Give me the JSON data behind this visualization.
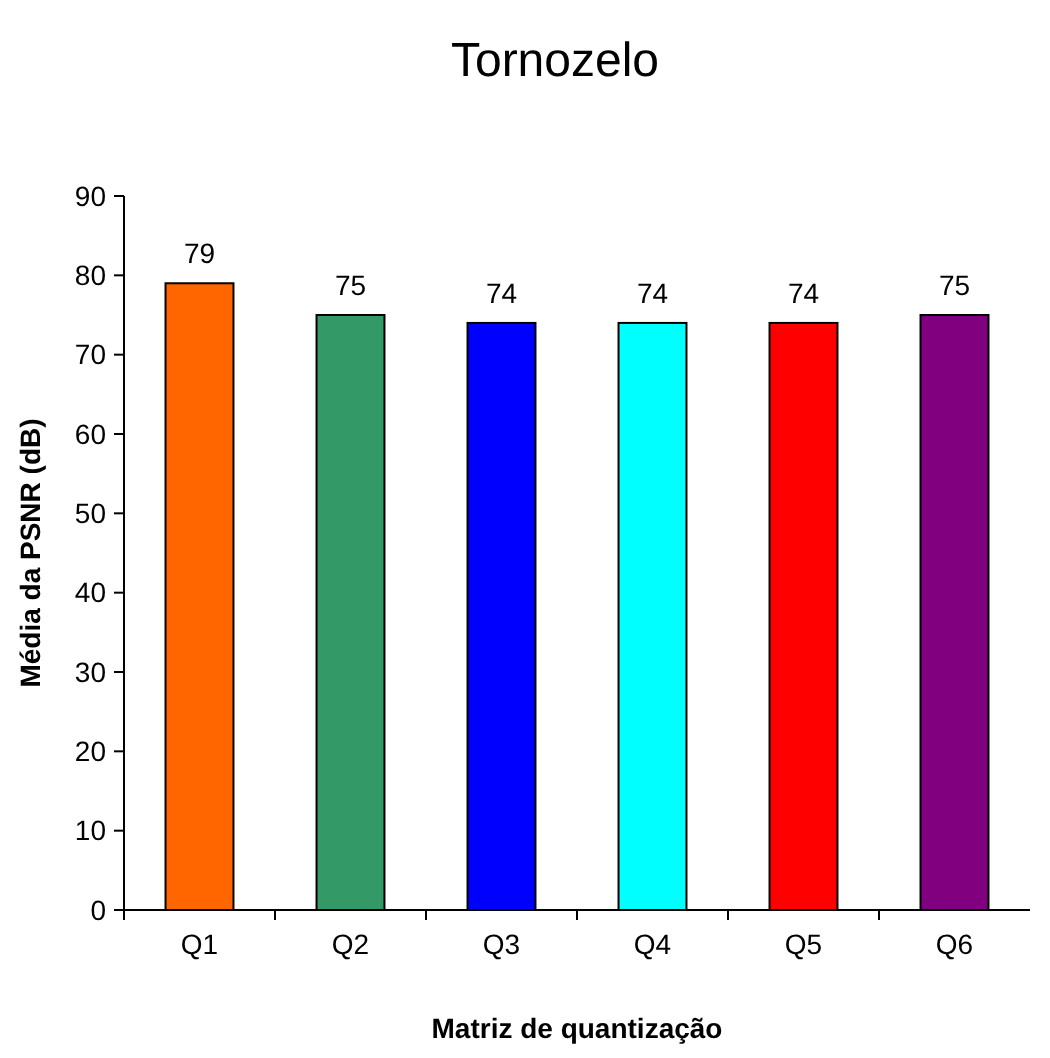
{
  "chart_data": {
    "type": "bar",
    "title": "Tornozelo",
    "xlabel": "Matriz de quantização",
    "ylabel": "Média da PSNR (dB)",
    "categories": [
      "Q1",
      "Q2",
      "Q3",
      "Q4",
      "Q5",
      "Q6"
    ],
    "values": [
      79,
      75,
      74,
      74,
      74,
      75
    ],
    "colors": [
      "#ff6600",
      "#339966",
      "#0000ff",
      "#00ffff",
      "#ff0000",
      "#800080"
    ],
    "ylim": [
      0,
      90
    ],
    "yticks": [
      0,
      10,
      20,
      30,
      40,
      50,
      60,
      70,
      80,
      90
    ],
    "data_labels": true
  }
}
